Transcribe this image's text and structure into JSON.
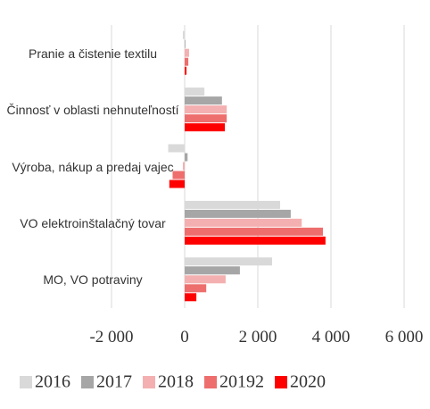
{
  "chart_data": {
    "type": "hbar",
    "categories": [
      "Pranie a čistenie textilu",
      "Činnosť v oblasti nehnuteľností",
      "Výroba, nákup a predaj vajec",
      "VO elektroinštalačný tovar",
      "MO, VO potraviny"
    ],
    "series": [
      {
        "name": "2016",
        "color": "#d9d9d9",
        "values": [
          -50,
          540,
          -450,
          2610,
          2390
        ]
      },
      {
        "name": "2017",
        "color": "#a6a6a6",
        "values": [
          20,
          1020,
          80,
          2900,
          1510
        ]
      },
      {
        "name": "2018",
        "color": "#f4b0b0",
        "values": [
          120,
          1150,
          -50,
          3200,
          1120
        ]
      },
      {
        "name": "20192",
        "color": "#ee6e6e",
        "values": [
          100,
          1150,
          -330,
          3780,
          590
        ]
      },
      {
        "name": "2020",
        "color": "#ff0000",
        "values": [
          50,
          1100,
          -420,
          3850,
          320
        ]
      }
    ],
    "xlim": [
      -2000,
      6000
    ],
    "xticks": [
      {
        "value": -2000,
        "label": "-2 000"
      },
      0,
      {
        "value": 2000,
        "label": "2 000"
      },
      {
        "value": 4000,
        "label": "4 000"
      },
      {
        "value": 6000,
        "label": "6 000"
      }
    ],
    "grid": true,
    "legend": "bottom"
  }
}
